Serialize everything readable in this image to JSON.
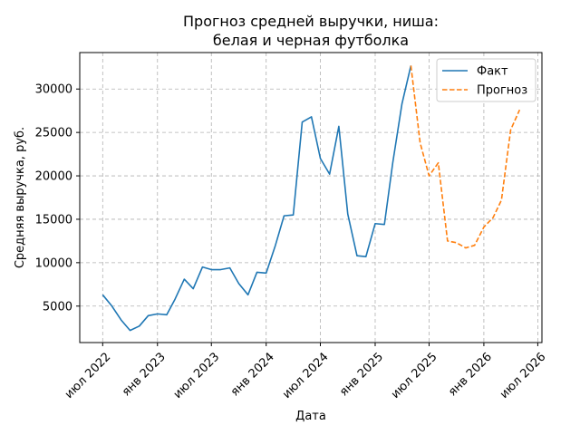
{
  "chart_data": {
    "type": "line",
    "title": "Прогноз средней выручки, ниша:\nбелая и черная футболка",
    "xlabel": "Дата",
    "ylabel": "Средняя выручка, руб.",
    "grid": true,
    "legend_position": "top-right",
    "x_ticks": [
      {
        "date": "2022-07-01",
        "label": "июл 2022"
      },
      {
        "date": "2023-01-01",
        "label": "янв 2023"
      },
      {
        "date": "2023-07-01",
        "label": "июл 2023"
      },
      {
        "date": "2024-01-01",
        "label": "янв 2024"
      },
      {
        "date": "2024-07-01",
        "label": "июл 2024"
      },
      {
        "date": "2025-01-01",
        "label": "янв 2025"
      },
      {
        "date": "2025-07-01",
        "label": "июл 2025"
      },
      {
        "date": "2026-01-01",
        "label": "янв 2026"
      },
      {
        "date": "2026-07-01",
        "label": "июл 2026"
      }
    ],
    "y_ticks": [
      5000,
      10000,
      15000,
      20000,
      25000,
      30000
    ],
    "xlim": [
      "2022-04-15",
      "2026-07-15"
    ],
    "ylim": [
      800,
      34200
    ],
    "series": [
      {
        "name": "Факт",
        "color": "#1f77b4",
        "style": "solid",
        "points": [
          {
            "x": "2022-07-01",
            "y": 6300
          },
          {
            "x": "2022-08-01",
            "y": 5000
          },
          {
            "x": "2022-09-01",
            "y": 3400
          },
          {
            "x": "2022-10-01",
            "y": 2200
          },
          {
            "x": "2022-11-01",
            "y": 2700
          },
          {
            "x": "2022-12-01",
            "y": 3900
          },
          {
            "x": "2023-01-01",
            "y": 4100
          },
          {
            "x": "2023-02-01",
            "y": 4000
          },
          {
            "x": "2023-03-01",
            "y": 5800
          },
          {
            "x": "2023-04-01",
            "y": 8100
          },
          {
            "x": "2023-05-01",
            "y": 7000
          },
          {
            "x": "2023-06-01",
            "y": 9500
          },
          {
            "x": "2023-07-01",
            "y": 9200
          },
          {
            "x": "2023-08-01",
            "y": 9200
          },
          {
            "x": "2023-09-01",
            "y": 9400
          },
          {
            "x": "2023-10-01",
            "y": 7600
          },
          {
            "x": "2023-11-01",
            "y": 6300
          },
          {
            "x": "2023-12-01",
            "y": 8900
          },
          {
            "x": "2024-01-01",
            "y": 8800
          },
          {
            "x": "2024-02-01",
            "y": 12000
          },
          {
            "x": "2024-03-01",
            "y": 15400
          },
          {
            "x": "2024-04-01",
            "y": 15500
          },
          {
            "x": "2024-05-01",
            "y": 26200
          },
          {
            "x": "2024-06-01",
            "y": 26800
          },
          {
            "x": "2024-07-01",
            "y": 22000
          },
          {
            "x": "2024-08-01",
            "y": 20200
          },
          {
            "x": "2024-09-01",
            "y": 25700
          },
          {
            "x": "2024-10-01",
            "y": 15600
          },
          {
            "x": "2024-11-01",
            "y": 10800
          },
          {
            "x": "2024-12-01",
            "y": 10700
          },
          {
            "x": "2025-01-01",
            "y": 14500
          },
          {
            "x": "2025-02-01",
            "y": 14400
          },
          {
            "x": "2025-03-01",
            "y": 21500
          },
          {
            "x": "2025-04-01",
            "y": 28300
          },
          {
            "x": "2025-05-01",
            "y": 32700
          }
        ]
      },
      {
        "name": "Прогноз",
        "color": "#ff7f0e",
        "style": "dashed",
        "points": [
          {
            "x": "2025-05-01",
            "y": 32700
          },
          {
            "x": "2025-06-01",
            "y": 23800
          },
          {
            "x": "2025-07-01",
            "y": 20000
          },
          {
            "x": "2025-08-01",
            "y": 21500
          },
          {
            "x": "2025-09-01",
            "y": 12500
          },
          {
            "x": "2025-10-01",
            "y": 12300
          },
          {
            "x": "2025-11-01",
            "y": 11700
          },
          {
            "x": "2025-12-01",
            "y": 12000
          },
          {
            "x": "2026-01-01",
            "y": 14100
          },
          {
            "x": "2026-02-01",
            "y": 15200
          },
          {
            "x": "2026-03-01",
            "y": 17200
          },
          {
            "x": "2026-04-01",
            "y": 25300
          },
          {
            "x": "2026-05-01",
            "y": 27600
          }
        ]
      }
    ]
  }
}
